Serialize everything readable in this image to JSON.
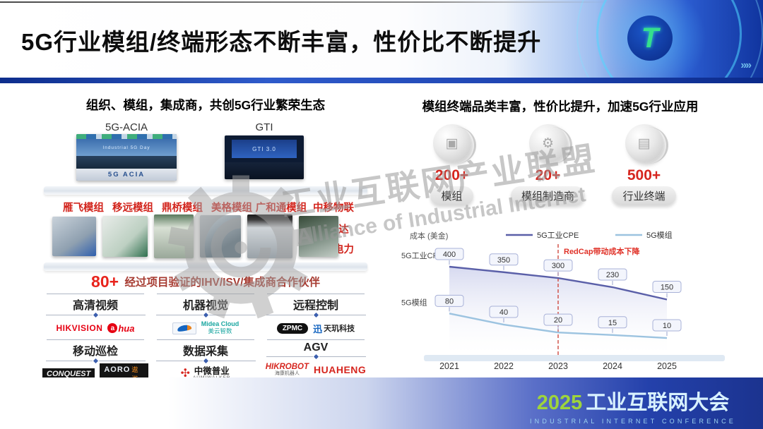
{
  "header": {
    "title": "5G行业模组/终端形态不断丰富，性价比不断提升",
    "logo_letter": "T",
    "decor_chevrons": "»»"
  },
  "left": {
    "title": "组织、模组，集成商，共创5G行业繁荣生态",
    "orgs": [
      {
        "name": "5G-ACIA",
        "photo_line1": "Industrial 5G Day",
        "photo_line2": "5G ACIA"
      },
      {
        "name": "GTI",
        "photo_line1": "GTI 3.0"
      }
    ],
    "brands": [
      "雁飞模组",
      "移远模组",
      "鼎桥模组",
      "美格模组",
      "广和通模组"
    ],
    "brands_stacked": [
      "中移物联",
      "利尔达",
      "智芯电力"
    ],
    "partners_count": "80+",
    "partners_text": "经过项目验证的IHV/ISV/集成商合作伙伴",
    "categories": [
      "高清视频",
      "机器视觉",
      "远程控制",
      "移动巡检",
      "数据采集",
      "AGV"
    ],
    "logos": {
      "hikvision": "HIKVISION",
      "dahua_a": "a",
      "dahua_rest": "hua",
      "midea_en": "Midea Cloud",
      "midea_cn": "美云智数",
      "zpmc": "ZPMC",
      "tianji_icon": "迅",
      "tianji": "天玑科技",
      "conquest": "CONQUEST",
      "aoro": "AORO",
      "aoro_cn": "遨游",
      "aumi_icon": "✣",
      "aumi": "中微普业",
      "aumi_sub": "AUMIWALKER",
      "hikrobot": "HIKROBOT",
      "hikrobot_cn": "海康机器人",
      "huaheng": "HUAHENG"
    }
  },
  "right": {
    "title": "模组终端品类丰富，性价比提升，加速5G行业应用",
    "stats": [
      {
        "count": "200+",
        "label": "模组",
        "icon": "▣"
      },
      {
        "count": "20+",
        "label": "模组制造商",
        "icon": "⚙"
      },
      {
        "count": "500+",
        "label": "行业终端",
        "icon": "▤"
      }
    ]
  },
  "chart_data": {
    "type": "line",
    "title": "",
    "ylabel": "成本 (美金)",
    "xlabel": "",
    "categories": [
      "2021",
      "2022",
      "2023",
      "2024",
      "2025"
    ],
    "series": [
      {
        "name": "5G工业CPE",
        "values": [
          400,
          350,
          300,
          230,
          150
        ],
        "color": "#5a5fa8"
      },
      {
        "name": "5G模组",
        "values": [
          80,
          40,
          20,
          15,
          10
        ],
        "color": "#9cc3e0"
      }
    ],
    "annotation": "RedCap带动成本下降",
    "annotation_x": "2023",
    "legend_position": "top",
    "grid": false,
    "data_labels": true
  },
  "watermark": {
    "cn": "工业互联网产业联盟",
    "en": "Alliance of Industrial Internet"
  },
  "footer": {
    "year": "2025",
    "title": "工业互联网大会",
    "subtitle": "INDUSTRIAL INTERNET CONFERENCE"
  },
  "colors": {
    "accent_red": "#d6261f",
    "cpe_line": "#5a5fa8",
    "module_line": "#9cc3e0",
    "footer_blue": "#1b338f",
    "logo_green": "#9ed43c"
  }
}
